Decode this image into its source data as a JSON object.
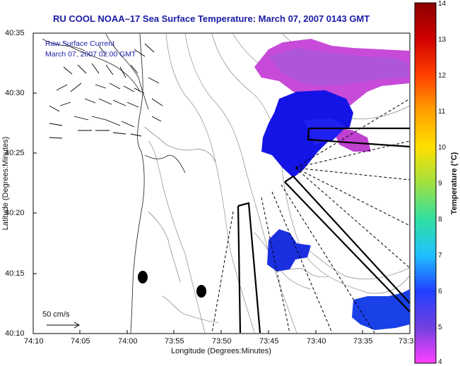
{
  "title": "RU COOL  NOAA–17  Sea Surface Temperature:  March 07, 2007 0143 GMT",
  "overlay": {
    "line1": "Raw Surface Current",
    "line2": "March 07, 2007 02:00 GMT"
  },
  "axes": {
    "xlabel": "Longitude (Degrees:Minutes)",
    "ylabel": "Latitude (Degrees:Minutes)",
    "x_ticks": [
      "74:10",
      "74:05",
      "74:00",
      "73:55",
      "73:50",
      "73:45",
      "73:40",
      "73:35",
      "73:3"
    ],
    "y_ticks": [
      "40:35",
      "40:30",
      "40:25",
      "40:20",
      "40:15",
      "40:10"
    ]
  },
  "scale_label": "50 cm/s",
  "colorbar": {
    "label": "Temperature (°C)",
    "ticks": [
      "14",
      "13",
      "12",
      "11",
      "10",
      "9",
      "8",
      "7",
      "6",
      "5",
      "4"
    ],
    "min": 4,
    "max": 14
  },
  "colors": {
    "title": "#1a1aa6",
    "sst_cold": "#1414e6",
    "sst_mid": "#5050ff",
    "sst_warm": "#c040d0",
    "sst_magenta": "#e64ae0"
  }
}
